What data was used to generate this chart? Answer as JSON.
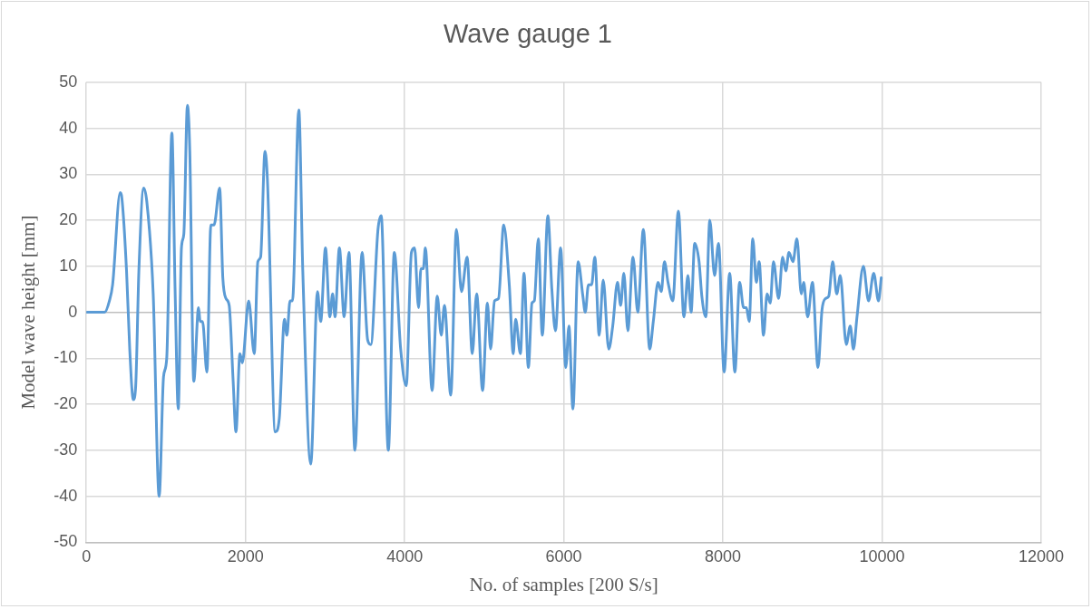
{
  "chart_data": {
    "type": "line",
    "title": "Wave gauge 1",
    "xlabel": "No. of samples [200 S/s]",
    "ylabel": "Model wave height [mm]",
    "xlim": [
      0,
      12000
    ],
    "xticks": [
      0,
      2000,
      4000,
      6000,
      8000,
      10000,
      12000
    ],
    "ylim": [
      -50,
      50
    ],
    "yticks": [
      -50,
      -40,
      -30,
      -20,
      -10,
      0,
      10,
      20,
      30,
      40,
      50
    ],
    "grid": true,
    "marker": "none",
    "line_style": "solid",
    "series": [
      {
        "color": "#5b9bd5",
        "x": [
          0,
          230,
          290,
          330,
          425,
          445,
          505,
          545,
          590,
          620,
          660,
          720,
          760,
          840,
          915,
          970,
          1010,
          1075,
          1115,
          1155,
          1195,
          1225,
          1270,
          1300,
          1350,
          1410,
          1430,
          1460,
          1515,
          1565,
          1605,
          1675,
          1715,
          1755,
          1795,
          1845,
          1880,
          1930,
          1960,
          2040,
          2110,
          2155,
          2190,
          2245,
          2275,
          2375,
          2425,
          2490,
          2520,
          2560,
          2590,
          2670,
          2720,
          2820,
          2905,
          2945,
          3005,
          3060,
          3095,
          3125,
          3180,
          3240,
          3300,
          3375,
          3465,
          3535,
          3575,
          3665,
          3705,
          3795,
          3870,
          3950,
          4020,
          4085,
          4125,
          4175,
          4205,
          4235,
          4260,
          4345,
          4410,
          4460,
          4500,
          4580,
          4650,
          4715,
          4785,
          4850,
          4905,
          4980,
          5040,
          5080,
          5130,
          5180,
          5245,
          5315,
          5365,
          5395,
          5455,
          5500,
          5555,
          5600,
          5630,
          5680,
          5730,
          5800,
          5850,
          5895,
          5960,
          6025,
          6065,
          6115,
          6180,
          6240,
          6270,
          6310,
          6350,
          6390,
          6445,
          6495,
          6565,
          6615,
          6675,
          6715,
          6755,
          6805,
          6870,
          6930,
          7000,
          7080,
          7125,
          7185,
          7225,
          7265,
          7310,
          7370,
          7440,
          7510,
          7560,
          7600,
          7645,
          7700,
          7735,
          7785,
          7835,
          7895,
          7945,
          8015,
          8085,
          8150,
          8210,
          8260,
          8295,
          8330,
          8375,
          8420,
          8455,
          8510,
          8555,
          8595,
          8635,
          8700,
          8750,
          8790,
          8830,
          8880,
          8930,
          8985,
          9015,
          9065,
          9125,
          9195,
          9245,
          9290,
          9330,
          9380,
          9430,
          9475,
          9550,
          9600,
          9640,
          9685,
          9765,
          9830,
          9895,
          9955,
          9990
        ],
        "values": [
          0,
          0,
          2.5,
          6,
          26,
          25,
          9,
          -8,
          -19,
          -16,
          9,
          27,
          24,
          4,
          -40,
          -14,
          -10,
          39,
          5,
          -21,
          14,
          17,
          45,
          35,
          -15,
          1,
          -2,
          -2,
          -13,
          19,
          19,
          27,
          7.5,
          3,
          1.5,
          -15,
          -26,
          -9,
          -11,
          2.5,
          -9,
          11,
          12,
          35,
          29,
          -26,
          -23,
          -1.5,
          -5,
          2.5,
          2.5,
          44,
          9,
          -33,
          4.5,
          -2,
          14,
          -1,
          4,
          -1,
          14,
          -1,
          13,
          -30,
          13,
          -6,
          -7,
          18,
          21,
          -30,
          13,
          -8,
          -16,
          13,
          14,
          1,
          9.5,
          9.5,
          14,
          -17,
          3.5,
          -5,
          1.5,
          -18,
          18,
          4.5,
          12,
          -9,
          4,
          -17,
          2,
          -8,
          2.5,
          3,
          19,
          6,
          -9,
          -1.5,
          -9,
          8.5,
          -12,
          2,
          2.5,
          16,
          -5,
          21,
          5,
          -4,
          14,
          -12,
          -3,
          -21,
          11,
          3.5,
          0,
          6,
          6,
          12,
          -5,
          7,
          -8,
          -3,
          6.5,
          1.5,
          8.5,
          -4,
          12,
          0,
          18,
          -8,
          -2,
          6.5,
          4.5,
          11,
          6.5,
          2.5,
          22,
          -1,
          8,
          0,
          15,
          11,
          3.5,
          -1,
          20,
          8,
          15,
          -13,
          8.5,
          -13,
          6.5,
          1,
          1,
          -2,
          16,
          6.5,
          11,
          -5,
          4,
          2,
          11,
          3,
          12,
          9,
          13,
          11,
          16,
          4,
          6.5,
          -1,
          6.5,
          -12,
          0.5,
          3,
          3.5,
          11,
          4,
          8,
          -7,
          -3,
          -8,
          -1,
          10,
          2.5,
          8.5,
          2.5,
          7.5
        ]
      }
    ]
  }
}
